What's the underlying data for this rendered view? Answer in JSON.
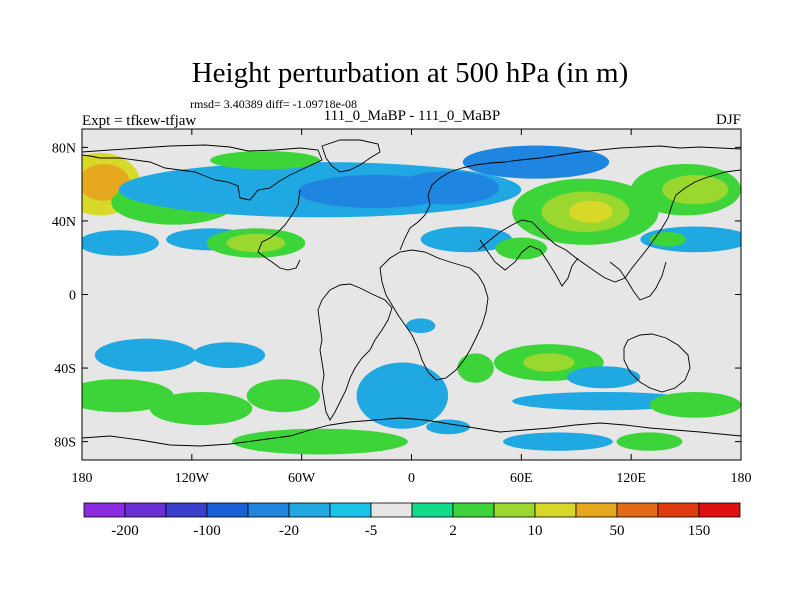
{
  "chart_data": {
    "type": "heatmap",
    "title": "Height perturbation at 500 hPa (in m)",
    "stats_label": "rmsd= 3.40389 diff= -1.09718e-08",
    "subtitle_left": "Expt = tfkew-tfjaw",
    "subtitle_center": "111_0_MaBP - 111_0_MaBP",
    "subtitle_right": "DJF",
    "x_ticks": [
      "180",
      "120W",
      "60W",
      "0",
      "60E",
      "120E",
      "180"
    ],
    "x_tick_values": [
      -180,
      -120,
      -60,
      0,
      60,
      120,
      180
    ],
    "y_ticks": [
      "80N",
      "40N",
      "0",
      "40S",
      "80S"
    ],
    "y_tick_values": [
      80,
      40,
      0,
      -40,
      -80
    ],
    "xlim": [
      -180,
      180
    ],
    "ylim": [
      -90,
      90
    ],
    "colorbar": {
      "colors": [
        "#8a2be2",
        "#6a2fd6",
        "#3a3fd0",
        "#1a5fd8",
        "#1e86e0",
        "#1fa8e2",
        "#18c4e8",
        "#e6e6e6",
        "#10dc8c",
        "#3dd43a",
        "#9ad830",
        "#d7d828",
        "#e6a81e",
        "#e46a14",
        "#e23a10",
        "#e01010"
      ],
      "labels": [
        "-200",
        "-100",
        "-20",
        "-5",
        "2",
        "10",
        "50",
        "150"
      ]
    },
    "blobs": [
      {
        "lon": -170,
        "lat": 60,
        "rx": 22,
        "ry": 17,
        "level": 4
      },
      {
        "lon": -168,
        "lat": 61,
        "rx": 14,
        "ry": 10,
        "level": 5
      },
      {
        "lon": -130,
        "lat": 50,
        "rx": 34,
        "ry": 12,
        "level": 2
      },
      {
        "lon": -50,
        "lat": 57,
        "rx": 110,
        "ry": 15,
        "level": -2
      },
      {
        "lon": -20,
        "lat": 56,
        "rx": 42,
        "ry": 9,
        "level": -3
      },
      {
        "lon": 20,
        "lat": 58,
        "rx": 28,
        "ry": 9,
        "level": -3
      },
      {
        "lon": 68,
        "lat": 72,
        "rx": 40,
        "ry": 9,
        "level": -3
      },
      {
        "lon": -80,
        "lat": 73,
        "rx": 30,
        "ry": 5,
        "level": 2
      },
      {
        "lon": -110,
        "lat": 30,
        "rx": 24,
        "ry": 6,
        "level": -2
      },
      {
        "lon": -160,
        "lat": 28,
        "rx": 22,
        "ry": 7,
        "level": -2
      },
      {
        "lon": -85,
        "lat": 28,
        "rx": 27,
        "ry": 8,
        "level": 2
      },
      {
        "lon": -85,
        "lat": 28,
        "rx": 16,
        "ry": 5,
        "level": 3
      },
      {
        "lon": 95,
        "lat": 45,
        "rx": 40,
        "ry": 18,
        "level": 2
      },
      {
        "lon": 95,
        "lat": 45,
        "rx": 24,
        "ry": 11,
        "level": 3
      },
      {
        "lon": 98,
        "lat": 45,
        "rx": 12,
        "ry": 6,
        "level": 4
      },
      {
        "lon": 150,
        "lat": 57,
        "rx": 30,
        "ry": 14,
        "level": 2
      },
      {
        "lon": 155,
        "lat": 57,
        "rx": 18,
        "ry": 8,
        "level": 3
      },
      {
        "lon": 155,
        "lat": 30,
        "rx": 30,
        "ry": 7,
        "level": -2
      },
      {
        "lon": 30,
        "lat": 30,
        "rx": 25,
        "ry": 7,
        "level": -2
      },
      {
        "lon": 60,
        "lat": 25,
        "rx": 14,
        "ry": 6,
        "level": 2
      },
      {
        "lon": 5,
        "lat": -17,
        "rx": 8,
        "ry": 4,
        "level": -2
      },
      {
        "lon": -145,
        "lat": -33,
        "rx": 28,
        "ry": 9,
        "level": -2
      },
      {
        "lon": -100,
        "lat": -33,
        "rx": 20,
        "ry": 7,
        "level": -2
      },
      {
        "lon": -160,
        "lat": -55,
        "rx": 30,
        "ry": 9,
        "level": 2
      },
      {
        "lon": -115,
        "lat": -62,
        "rx": 28,
        "ry": 9,
        "level": 2
      },
      {
        "lon": -70,
        "lat": -55,
        "rx": 20,
        "ry": 9,
        "level": 2
      },
      {
        "lon": -5,
        "lat": -55,
        "rx": 25,
        "ry": 18,
        "level": -2
      },
      {
        "lon": 35,
        "lat": -40,
        "rx": 10,
        "ry": 8,
        "level": 2
      },
      {
        "lon": 75,
        "lat": -37,
        "rx": 30,
        "ry": 10,
        "level": 2
      },
      {
        "lon": 75,
        "lat": -37,
        "rx": 14,
        "ry": 5,
        "level": 3
      },
      {
        "lon": 105,
        "lat": -58,
        "rx": 50,
        "ry": 5,
        "level": -2
      },
      {
        "lon": 155,
        "lat": -60,
        "rx": 25,
        "ry": 7,
        "level": 2
      },
      {
        "lon": 105,
        "lat": -45,
        "rx": 20,
        "ry": 6,
        "level": -2
      },
      {
        "lon": -50,
        "lat": -80,
        "rx": 48,
        "ry": 7,
        "level": 2
      },
      {
        "lon": 80,
        "lat": -80,
        "rx": 30,
        "ry": 5,
        "level": -2
      },
      {
        "lon": 130,
        "lat": -80,
        "rx": 18,
        "ry": 5,
        "level": 2
      },
      {
        "lon": 20,
        "lat": -72,
        "rx": 12,
        "ry": 4,
        "level": -2
      },
      {
        "lon": 140,
        "lat": 30,
        "rx": 10,
        "ry": 4,
        "level": 2
      }
    ]
  }
}
